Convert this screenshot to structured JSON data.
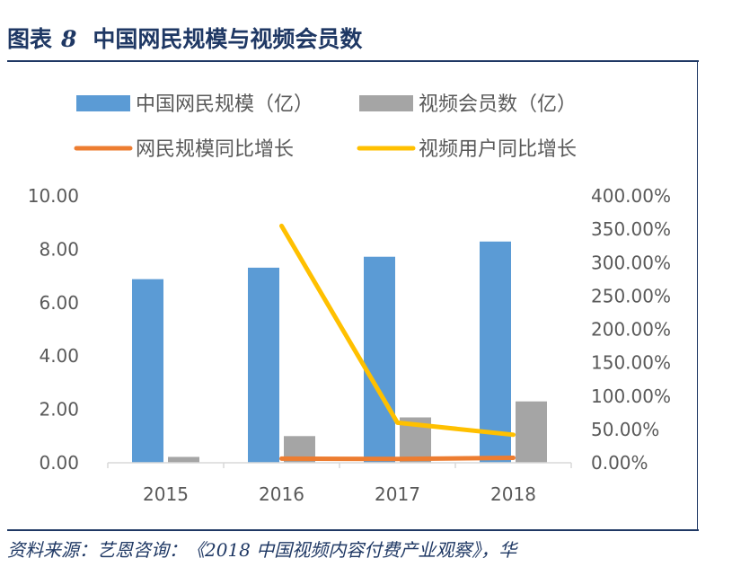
{
  "figure": {
    "label": "图表",
    "number": "8",
    "title": "中国网民规模与视频会员数"
  },
  "source_note": "资料来源：艺恩咨询：《2018 中国视频内容付费产业观察》，华",
  "chart_data": {
    "type": "bar",
    "categories": [
      "2015",
      "2016",
      "2017",
      "2018"
    ],
    "series": [
      {
        "name": "中国网民规模（亿）",
        "type": "bar",
        "axis": "left",
        "color": "#5b9bd5",
        "values": [
          6.88,
          7.31,
          7.72,
          8.29
        ]
      },
      {
        "name": "视频会员数（亿）",
        "type": "bar",
        "axis": "left",
        "color": "#a5a5a5",
        "values": [
          0.22,
          1.0,
          1.7,
          2.3
        ]
      },
      {
        "name": "网民规模同比增长",
        "type": "line",
        "axis": "right",
        "color": "#ed7d31",
        "values": [
          null,
          0.062,
          0.056,
          0.074
        ]
      },
      {
        "name": "视频用户同比增长",
        "type": "line",
        "axis": "right",
        "color": "#ffc000",
        "values": [
          null,
          3.55,
          0.6,
          0.42
        ]
      }
    ],
    "y_left": {
      "min": 0,
      "max": 10,
      "ticks": [
        "0.00",
        "2.00",
        "4.00",
        "6.00",
        "8.00",
        "10.00"
      ]
    },
    "y_right": {
      "min": 0,
      "max": 4,
      "ticks": [
        "0.00%",
        "50.00%",
        "100.00%",
        "150.00%",
        "200.00%",
        "250.00%",
        "300.00%",
        "350.00%",
        "400.00%"
      ]
    },
    "legend_position": "top",
    "grid": false
  }
}
